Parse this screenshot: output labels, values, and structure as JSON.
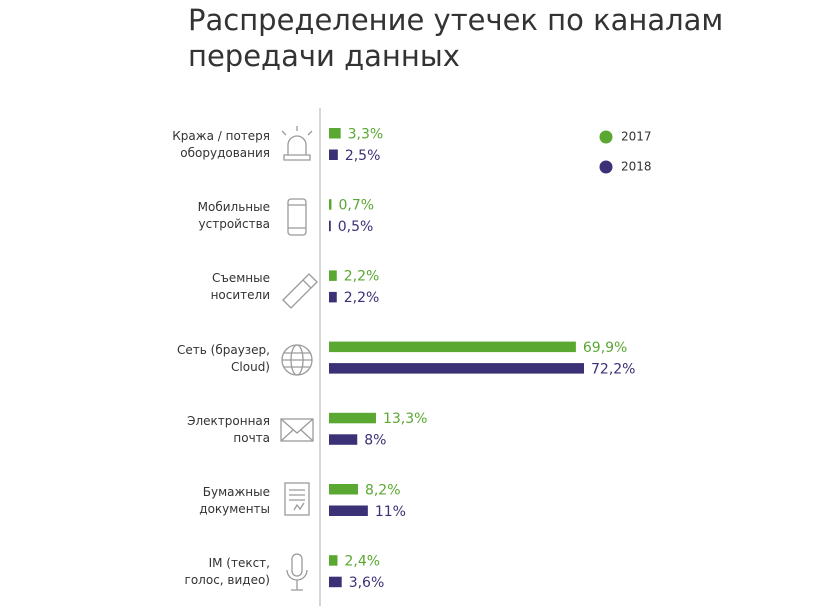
{
  "chart_data": {
    "type": "bar",
    "orientation": "horizontal",
    "title": "Распределение утечек по каналам\nпередачи данных",
    "categories": [
      "Кража / потеря\nоборудования",
      "Мобильные\nустройства",
      "Съемные\nносители",
      "Сеть (браузер,\nCloud)",
      "Электронная\nпочта",
      "Бумажные\nдокументы",
      "IM (текст,\nголос, видео)"
    ],
    "series": [
      {
        "name": "2017",
        "color": "#5aa832",
        "values": [
          3.3,
          0.7,
          2.2,
          69.9,
          13.3,
          8.2,
          2.4
        ],
        "value_labels": [
          "3,3%",
          "0,7%",
          "2,2%",
          "69,9%",
          "13,3%",
          "8,2%",
          "2,4%"
        ]
      },
      {
        "name": "2018",
        "color": "#3b3176",
        "values": [
          2.5,
          0.5,
          2.2,
          72.2,
          8,
          11,
          3.6
        ],
        "value_labels": [
          "2,5%",
          "0,5%",
          "2,2%",
          "72,2%",
          "8%",
          "11%",
          "3,6%"
        ]
      }
    ],
    "legend": "top-right"
  }
}
